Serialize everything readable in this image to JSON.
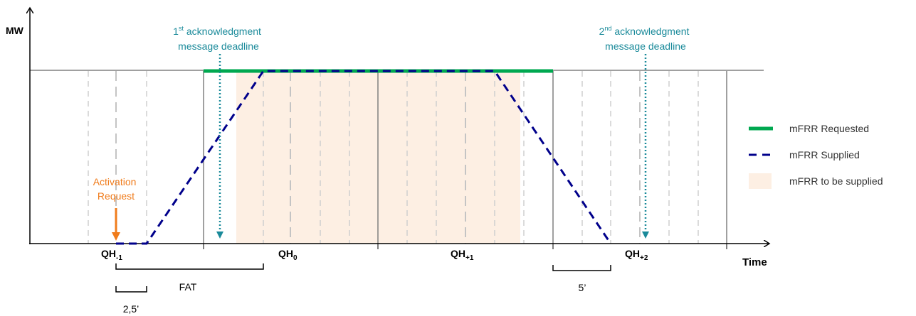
{
  "axes": {
    "y_label": "MW",
    "x_label": "Time"
  },
  "quarter_hours": [
    {
      "base": "QH",
      "sub": "-1"
    },
    {
      "base": "QH",
      "sub": "0"
    },
    {
      "base": "QH",
      "sub": "+1"
    },
    {
      "base": "QH",
      "sub": "+2"
    }
  ],
  "annotations": {
    "activation_request": [
      "Activation",
      "Request"
    ],
    "ack1": {
      "num": "1",
      "sup": "st",
      "line1": " acknowledgment",
      "line2": "message deadline"
    },
    "ack2": {
      "num": "2",
      "sup": "nd",
      "line1": " acknowledgment",
      "line2": "message deadline"
    },
    "fat": "FAT",
    "interval_small": "2,5’",
    "interval_ramp": "5’"
  },
  "legend": {
    "requested": "mFRR Requested",
    "supplied": "mFRR Supplied",
    "to_be_supplied": "mFRR to be supplied"
  },
  "colors": {
    "requested": "#00a850",
    "supplied": "#00008b",
    "to_be_supplied": "#fdefe3",
    "activation": "#f07c1c",
    "deadline": "#1a8a9a",
    "axis": "#000000",
    "grid_solid": "#808080",
    "grid_dashed": "#cfcfcf"
  }
}
